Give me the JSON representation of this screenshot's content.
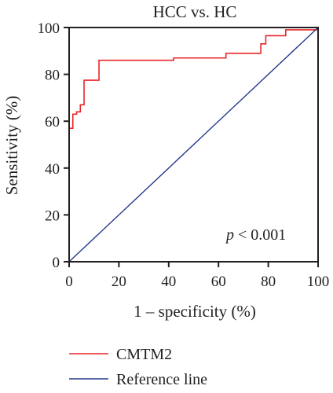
{
  "chart_data": {
    "type": "line",
    "title": "HCC vs. HC",
    "xlabel": "1 – specificity (%)",
    "ylabel": "Sensitivity (%)",
    "xlim": [
      0,
      100
    ],
    "ylim": [
      0,
      100
    ],
    "xticks": [
      "0",
      "20",
      "40",
      "60",
      "80",
      "100"
    ],
    "yticks": [
      "0",
      "20",
      "40",
      "60",
      "80",
      "100"
    ],
    "grid": false,
    "legend_position": "bottom",
    "annotation_var": "p",
    "annotation_rest": " < 0.001",
    "series": [
      {
        "name": "CMTM2",
        "color": "#e8262a",
        "step": true,
        "x": [
          0,
          0,
          1.5,
          1.5,
          3,
          3,
          4.5,
          4.5,
          6,
          6,
          12,
          12,
          42,
          42,
          63,
          63,
          77,
          77,
          79,
          79,
          87,
          87,
          100
        ],
        "y": [
          0,
          57,
          57,
          63,
          63,
          64,
          64,
          67,
          67,
          77.5,
          77.5,
          86,
          86,
          87,
          87,
          89,
          89,
          93,
          93,
          96.5,
          96.5,
          99,
          99
        ]
      },
      {
        "name": "Reference line",
        "color": "#283a8c",
        "step": false,
        "x": [
          0,
          100
        ],
        "y": [
          0,
          100
        ]
      }
    ]
  }
}
